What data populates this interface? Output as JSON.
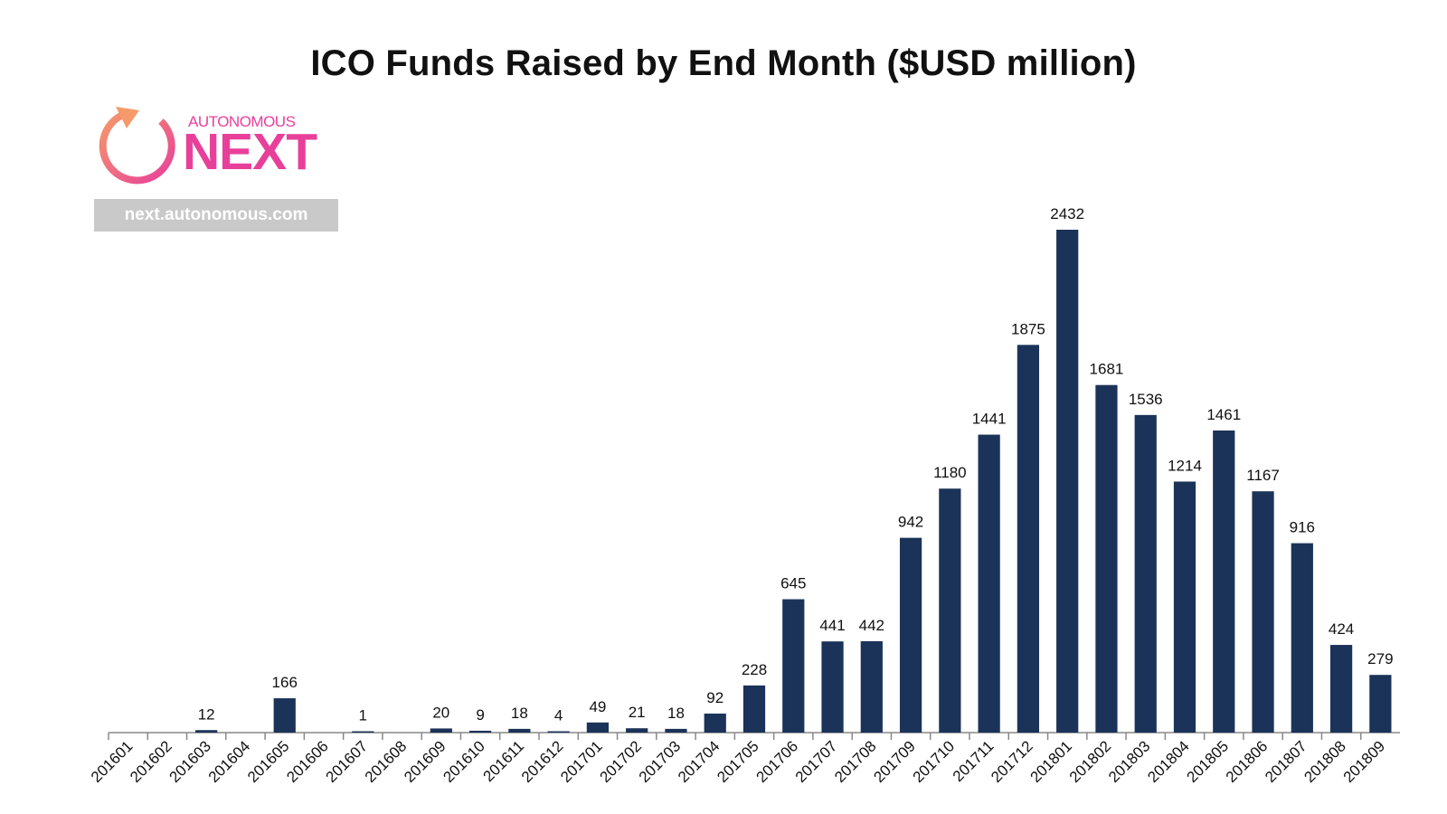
{
  "header": {
    "title": "ICO Funds Raised by End Month ($USD million)"
  },
  "logo": {
    "small_text": "AUTONOMOUS",
    "big_text": "NEXT",
    "url": "next.autonomous.com",
    "brand_color": "#e8409a",
    "ring_color": "#f59a6a"
  },
  "chart_data": {
    "type": "bar",
    "title": "ICO Funds Raised by End Month ($USD million)",
    "xlabel": "",
    "ylabel": "",
    "ylim": [
      0,
      2432
    ],
    "grid": false,
    "bar_color": "#1b3358",
    "categories": [
      "201601",
      "201602",
      "201603",
      "201604",
      "201605",
      "201606",
      "201607",
      "201608",
      "201609",
      "201610",
      "201611",
      "201612",
      "201701",
      "201702",
      "201703",
      "201704",
      "201705",
      "201706",
      "201707",
      "201708",
      "201709",
      "201710",
      "201711",
      "201712",
      "201801",
      "201802",
      "201803",
      "201804",
      "201805",
      "201806",
      "201807",
      "201808",
      "201809"
    ],
    "values": [
      null,
      null,
      12,
      null,
      166,
      null,
      1,
      null,
      20,
      9,
      18,
      4,
      49,
      21,
      18,
      92,
      228,
      645,
      441,
      442,
      942,
      1180,
      1441,
      1875,
      2432,
      1681,
      1536,
      1214,
      1461,
      1167,
      916,
      424,
      279
    ]
  }
}
